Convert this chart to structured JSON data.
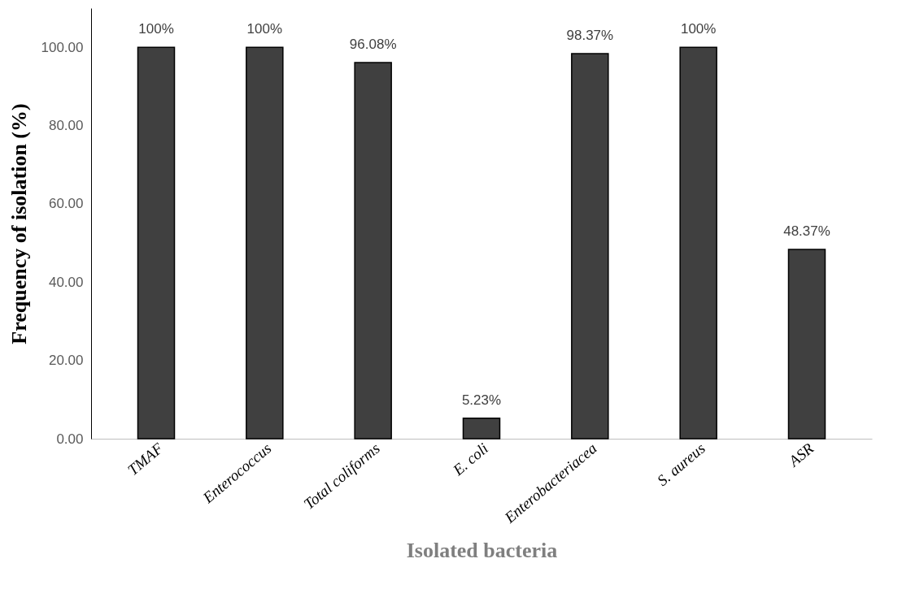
{
  "chart_data": {
    "type": "bar",
    "xlabel": "Isolated bacteria",
    "ylabel": "Frequency of isolation (%)",
    "categories": [
      "TMAF",
      "Enterococcus",
      "Total coliforms",
      "E. coli",
      "Enterobacteriacea",
      "S. aureus",
      "ASR"
    ],
    "values": [
      100,
      100,
      96.08,
      5.23,
      98.37,
      100,
      48.37
    ],
    "value_labels": [
      "100%",
      "100%",
      "96.08%",
      "5.23%",
      "98.37%",
      "100%",
      "48.37%"
    ],
    "color": "#404040",
    "ylim": [
      0,
      110
    ],
    "yticks": [
      {
        "value": 0,
        "label": "0.00"
      },
      {
        "value": 20,
        "label": "20.00"
      },
      {
        "value": 40,
        "label": "40.00"
      },
      {
        "value": 60,
        "label": "60.00"
      },
      {
        "value": 80,
        "label": "80.00"
      },
      {
        "value": 100,
        "label": "100.00"
      }
    ]
  }
}
